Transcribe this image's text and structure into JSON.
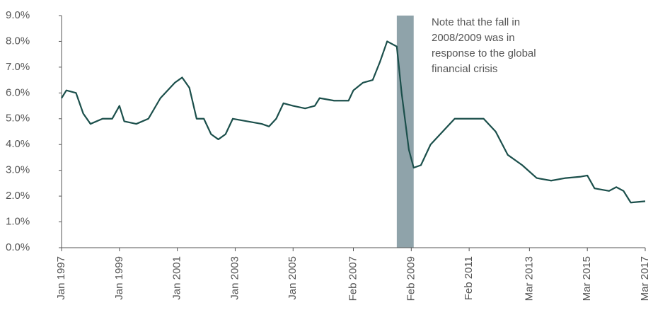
{
  "chart_data": {
    "type": "line",
    "annotation": [
      "Note that the fall in",
      "2008/2009 was in",
      "response to the global",
      "financial crisis"
    ],
    "highlight": {
      "from": "2008-08",
      "to": "2009-03",
      "color": "#8fa3aa"
    },
    "x": [
      "1997-01",
      "1997-03",
      "1997-07",
      "1997-10",
      "1998-01",
      "1998-06",
      "1998-10",
      "1999-01",
      "1999-03",
      "1999-08",
      "2000-01",
      "2000-06",
      "2000-12",
      "2001-03",
      "2001-06",
      "2001-09",
      "2001-12",
      "2002-03",
      "2002-06",
      "2002-09",
      "2002-12",
      "2003-06",
      "2003-12",
      "2004-03",
      "2004-06",
      "2004-09",
      "2005-01",
      "2005-06",
      "2005-10",
      "2005-12",
      "2006-06",
      "2006-12",
      "2007-02",
      "2007-06",
      "2007-10",
      "2008-01",
      "2008-04",
      "2008-08",
      "2008-10",
      "2009-01",
      "2009-03",
      "2009-06",
      "2009-10",
      "2010-03",
      "2010-08",
      "2011-02",
      "2011-08",
      "2012-01",
      "2012-06",
      "2012-12",
      "2013-06",
      "2013-12",
      "2014-06",
      "2014-12",
      "2015-03",
      "2015-06",
      "2015-12",
      "2016-03",
      "2016-06",
      "2016-09",
      "2017-03"
    ],
    "series": [
      {
        "color": "#1b4f4b",
        "values": [
          5.8,
          6.1,
          6.0,
          5.2,
          4.8,
          5.0,
          5.0,
          5.5,
          4.9,
          4.8,
          5.0,
          5.8,
          6.4,
          6.6,
          6.2,
          5.0,
          5.0,
          4.4,
          4.2,
          4.4,
          5.0,
          4.9,
          4.8,
          4.7,
          5.0,
          5.6,
          5.5,
          5.4,
          5.5,
          5.8,
          5.7,
          5.7,
          6.1,
          6.4,
          6.5,
          7.2,
          8.0,
          7.8,
          6.0,
          3.8,
          3.1,
          3.2,
          4.0,
          4.5,
          5.0,
          5.0,
          5.0,
          4.5,
          3.6,
          3.2,
          2.7,
          2.6,
          2.7,
          2.75,
          2.8,
          2.3,
          2.2,
          2.35,
          2.2,
          1.75,
          1.8
        ]
      }
    ],
    "xlim": [
      "1997-01",
      "2017-03"
    ],
    "xticks": [
      {
        "value": "1997-01",
        "label": "Jan 1997"
      },
      {
        "value": "1999-01",
        "label": "Jan 1999"
      },
      {
        "value": "2001-01",
        "label": "Jan 2001"
      },
      {
        "value": "2003-01",
        "label": "Jan 2003"
      },
      {
        "value": "2005-01",
        "label": "Jan 2005"
      },
      {
        "value": "2007-02",
        "label": "Feb 2007"
      },
      {
        "value": "2009-02",
        "label": "Feb 2009"
      },
      {
        "value": "2011-02",
        "label": "Feb 2011"
      },
      {
        "value": "2013-03",
        "label": "Mar 2013"
      },
      {
        "value": "2015-03",
        "label": "Mar 2015"
      },
      {
        "value": "2017-03",
        "label": "Mar 2017"
      }
    ],
    "ylim": [
      0,
      9
    ],
    "yticks": [
      {
        "value": 0,
        "label": "0.0%"
      },
      {
        "value": 1,
        "label": "1.0%"
      },
      {
        "value": 2,
        "label": "2.0%"
      },
      {
        "value": 3,
        "label": "3.0%"
      },
      {
        "value": 4,
        "label": "4.0%"
      },
      {
        "value": 5,
        "label": "5.0%"
      },
      {
        "value": 6,
        "label": "6.0%"
      },
      {
        "value": 7,
        "label": "7.0%"
      },
      {
        "value": 8,
        "label": "8.0%"
      },
      {
        "value": 9,
        "label": "9.0%"
      }
    ],
    "grid": false
  }
}
